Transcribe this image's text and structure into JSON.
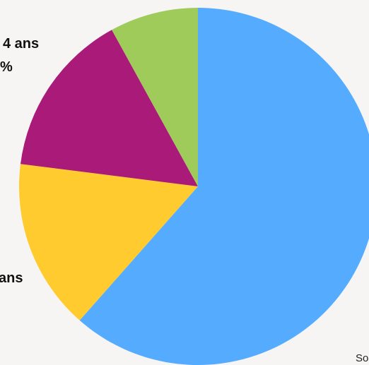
{
  "chart_data": {
    "type": "pie",
    "title": "",
    "slices": [
      {
        "value": 61.5,
        "color": "#55acff"
      },
      {
        "value": 15.5,
        "color": "#ffcb2e"
      },
      {
        "value": 15.0,
        "color": "#aa1a78"
      },
      {
        "value": 8.0,
        "color": "#9fcb5b"
      }
    ],
    "labels": {
      "top_line1": "4 ans",
      "top_line2": "%",
      "bottom": "ans"
    },
    "source_fragment": "So"
  }
}
